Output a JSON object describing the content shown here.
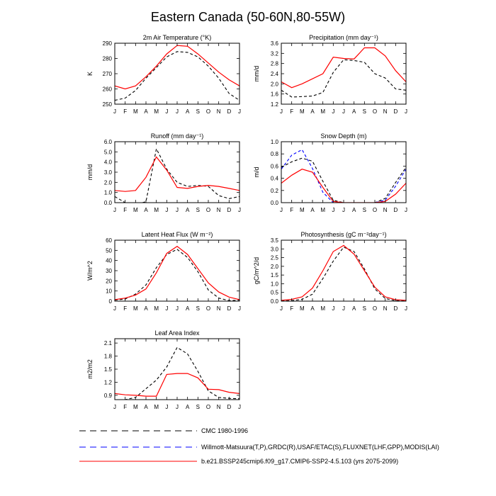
{
  "page_title": "Eastern Canada (50-60N,80-55W)",
  "months": [
    "J",
    "F",
    "M",
    "A",
    "M",
    "J",
    "J",
    "A",
    "S",
    "O",
    "N",
    "D",
    "J"
  ],
  "series_styles": [
    {
      "name": "CMC 1980-1996",
      "color": "#000000",
      "dash": "dashed"
    },
    {
      "name": "Willmott-Matsuura(T,P),GRDC(R),USAF/ETAC(S),FLUXNET(LHF,GPP),MODIS(LAI)",
      "color": "#0000ff",
      "dash": "dashed"
    },
    {
      "name": "b.e21.BSSP245cmip6.f09_g17.CMIP6-SSP2-4.5.103 (yrs 2075-2099)",
      "color": "#ff0000",
      "dash": "solid"
    }
  ],
  "chart_data": [
    {
      "type": "line",
      "title": "2m Air Temperature (°K)",
      "ylabel": "K",
      "ylim": [
        250,
        290
      ],
      "yticks": [
        250,
        260,
        270,
        280,
        290
      ],
      "series": [
        {
          "style": 0,
          "values": [
            252.5,
            254,
            259,
            267,
            274,
            281,
            284.5,
            284,
            281,
            275,
            267,
            257,
            252.5
          ]
        },
        {
          "style": 2,
          "values": [
            262,
            260,
            262,
            268,
            275,
            283,
            288.5,
            288,
            283,
            277,
            271,
            266,
            262
          ]
        }
      ]
    },
    {
      "type": "line",
      "title": "Precipitation (mm day⁻¹)",
      "ylabel": "mm/d",
      "ylim": [
        1.2,
        3.6
      ],
      "yticks": [
        1.2,
        1.6,
        2.0,
        2.4,
        2.8,
        3.2,
        3.6
      ],
      "series": [
        {
          "style": 0,
          "values": [
            1.75,
            1.48,
            1.5,
            1.52,
            1.66,
            2.45,
            2.95,
            2.92,
            2.85,
            2.4,
            2.23,
            1.8,
            1.75
          ]
        },
        {
          "style": 2,
          "values": [
            2.08,
            1.85,
            2.0,
            2.2,
            2.4,
            3.05,
            3.0,
            2.98,
            3.42,
            3.42,
            3.1,
            2.52,
            2.08
          ]
        }
      ]
    },
    {
      "type": "line",
      "title": "Runoff (mm day⁻¹)",
      "ylabel": "mm/d",
      "ylim": [
        0,
        6
      ],
      "yticks": [
        0.0,
        1.0,
        2.0,
        3.0,
        4.0,
        5.0,
        6.0
      ],
      "series": [
        {
          "style": 0,
          "values": [
            0.6,
            0.0,
            -0.2,
            0.1,
            5.3,
            3.3,
            2.0,
            1.6,
            1.7,
            1.6,
            0.7,
            0.4,
            0.6
          ]
        },
        {
          "style": 2,
          "values": [
            1.2,
            1.1,
            1.2,
            2.5,
            4.5,
            3.2,
            1.5,
            1.4,
            1.6,
            1.7,
            1.6,
            1.4,
            1.2
          ]
        }
      ]
    },
    {
      "type": "line",
      "title": "Snow Depth (m)",
      "ylabel": "m/d",
      "ylim": [
        0,
        1
      ],
      "yticks": [
        0.0,
        0.2,
        0.4,
        0.6,
        0.8,
        1.0
      ],
      "series": [
        {
          "style": 0,
          "values": [
            0.58,
            0.67,
            0.73,
            0.68,
            0.35,
            0.04,
            0.0,
            0.0,
            0.0,
            0.0,
            0.07,
            0.33,
            0.58
          ]
        },
        {
          "style": 1,
          "values": [
            0.55,
            0.78,
            0.87,
            0.56,
            0.17,
            0.0,
            0.0,
            0.0,
            0.0,
            0.0,
            0.04,
            0.27,
            0.55
          ]
        },
        {
          "style": 2,
          "values": [
            0.32,
            0.45,
            0.55,
            0.5,
            0.25,
            0.02,
            0.0,
            0.0,
            0.0,
            0.0,
            0.02,
            0.14,
            0.32
          ]
        }
      ]
    },
    {
      "type": "line",
      "title": "Latent Heat Flux (W m⁻²)",
      "ylabel": "W/m^2",
      "ylim": [
        0,
        60
      ],
      "yticks": [
        0,
        10,
        20,
        30,
        40,
        50,
        60
      ],
      "series": [
        {
          "style": 0,
          "values": [
            1,
            2,
            7,
            16,
            33,
            46,
            51,
            43,
            29,
            11,
            3,
            0.5,
            1
          ]
        },
        {
          "style": 2,
          "values": [
            1.5,
            3,
            6,
            12,
            28,
            47,
            54,
            46,
            32,
            18,
            9,
            4,
            1.5
          ]
        }
      ]
    },
    {
      "type": "line",
      "title": "Photosynthesis (gC m⁻²day⁻¹)",
      "ylabel": "gC/m^2/d",
      "ylim": [
        0,
        3.5
      ],
      "yticks": [
        0.0,
        0.5,
        1.0,
        1.5,
        2.0,
        2.5,
        3.0,
        3.5
      ],
      "series": [
        {
          "style": 0,
          "values": [
            0.02,
            0.03,
            0.1,
            0.4,
            1.3,
            2.3,
            3.1,
            2.85,
            1.85,
            0.7,
            0.15,
            0.03,
            0.02
          ]
        },
        {
          "style": 2,
          "values": [
            0.05,
            0.1,
            0.25,
            0.75,
            1.75,
            2.85,
            3.2,
            2.7,
            1.75,
            0.8,
            0.25,
            0.08,
            0.05
          ]
        }
      ]
    },
    {
      "type": "line",
      "title": "Leaf Area Index",
      "ylabel": "m2/m2",
      "ylim": [
        0.8,
        2.2
      ],
      "yticks": [
        0.9,
        1.2,
        1.5,
        1.8,
        2.1
      ],
      "series": [
        {
          "style": 0,
          "values": [
            0.75,
            0.8,
            0.85,
            1.05,
            1.25,
            1.55,
            2.0,
            1.85,
            1.45,
            1.0,
            0.85,
            0.83,
            0.82
          ]
        },
        {
          "style": 2,
          "values": [
            0.94,
            0.91,
            0.9,
            0.88,
            0.88,
            1.38,
            1.4,
            1.4,
            1.3,
            1.04,
            1.03,
            0.97,
            0.94
          ]
        }
      ]
    }
  ]
}
